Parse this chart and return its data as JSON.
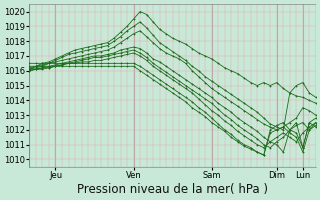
{
  "bg_color": "#c8e8d8",
  "line_color": "#1a6b1a",
  "ylim": [
    1009.5,
    1020.5
  ],
  "yticks": [
    1010,
    1011,
    1012,
    1013,
    1014,
    1015,
    1016,
    1017,
    1018,
    1019,
    1020
  ],
  "xlabel": "Pression niveau de la mer( hPa )",
  "xlabel_fontsize": 8.5,
  "tick_fontsize": 6,
  "day_labels": [
    "Jeu",
    "Ven",
    "Sam",
    "Dim",
    "Lun"
  ],
  "day_x": [
    24,
    96,
    168,
    228,
    252
  ],
  "xlim": [
    0,
    264
  ],
  "vline_color": "#e8a8a8",
  "hline_color": "#e8a8a8",
  "major_vline_color": "#c0a8a8",
  "lines": [
    [
      0,
      1016.1,
      6,
      1016.3,
      12,
      1016.5,
      18,
      1016.6,
      24,
      1016.8,
      30,
      1017.0,
      36,
      1017.2,
      42,
      1017.4,
      48,
      1017.5,
      54,
      1017.6,
      60,
      1017.7,
      66,
      1017.8,
      72,
      1017.9,
      78,
      1018.2,
      84,
      1018.6,
      90,
      1019.0,
      96,
      1019.5,
      102,
      1020.0,
      108,
      1019.8,
      114,
      1019.3,
      120,
      1018.8,
      126,
      1018.5,
      132,
      1018.2,
      138,
      1018.0,
      144,
      1017.8,
      150,
      1017.5,
      156,
      1017.2,
      162,
      1017.0,
      168,
      1016.8,
      174,
      1016.5,
      180,
      1016.2,
      186,
      1016.0,
      192,
      1015.8,
      198,
      1015.5,
      204,
      1015.2,
      210,
      1015.0,
      216,
      1015.2,
      222,
      1015.0,
      228,
      1015.2,
      234,
      1014.8,
      240,
      1014.5,
      246,
      1014.3,
      252,
      1014.2,
      258,
      1014.0,
      264,
      1013.8
    ],
    [
      0,
      1016.1,
      6,
      1016.2,
      12,
      1016.3,
      18,
      1016.5,
      24,
      1016.7,
      30,
      1016.9,
      36,
      1017.1,
      42,
      1017.2,
      48,
      1017.3,
      54,
      1017.4,
      60,
      1017.5,
      66,
      1017.6,
      72,
      1017.7,
      78,
      1018.0,
      84,
      1018.3,
      90,
      1018.7,
      96,
      1019.0,
      102,
      1019.3,
      108,
      1018.9,
      114,
      1018.4,
      120,
      1017.9,
      126,
      1017.6,
      132,
      1017.3,
      138,
      1017.0,
      144,
      1016.7,
      150,
      1016.3,
      156,
      1016.0,
      162,
      1015.6,
      168,
      1015.3,
      174,
      1015.0,
      180,
      1014.7,
      186,
      1014.4,
      192,
      1014.1,
      198,
      1013.8,
      204,
      1013.5,
      210,
      1013.2,
      216,
      1012.8,
      222,
      1012.4,
      228,
      1012.2,
      234,
      1012.0,
      240,
      1014.5,
      246,
      1015.0,
      252,
      1015.2,
      258,
      1014.5,
      264,
      1014.2
    ],
    [
      0,
      1016.2,
      6,
      1016.3,
      12,
      1016.4,
      18,
      1016.5,
      24,
      1016.6,
      30,
      1016.7,
      36,
      1016.8,
      42,
      1016.9,
      48,
      1017.0,
      54,
      1017.1,
      60,
      1017.2,
      66,
      1017.3,
      72,
      1017.4,
      78,
      1017.6,
      84,
      1017.9,
      90,
      1018.2,
      96,
      1018.5,
      102,
      1018.7,
      108,
      1018.3,
      114,
      1017.9,
      120,
      1017.5,
      126,
      1017.2,
      132,
      1017.0,
      138,
      1016.8,
      144,
      1016.5,
      150,
      1016.0,
      156,
      1015.6,
      162,
      1015.2,
      168,
      1014.8,
      174,
      1014.5,
      180,
      1014.2,
      186,
      1013.9,
      192,
      1013.6,
      198,
      1013.3,
      204,
      1013.0,
      210,
      1012.7,
      216,
      1012.4,
      222,
      1012.2,
      228,
      1012.0,
      234,
      1012.2,
      240,
      1012.5,
      246,
      1012.8,
      252,
      1013.5,
      258,
      1013.3,
      264,
      1013.0
    ],
    [
      0,
      1016.0,
      6,
      1016.1,
      12,
      1016.2,
      18,
      1016.3,
      24,
      1016.4,
      30,
      1016.5,
      36,
      1016.6,
      42,
      1016.7,
      48,
      1016.8,
      54,
      1016.9,
      60,
      1017.0,
      66,
      1017.0,
      72,
      1017.1,
      78,
      1017.2,
      84,
      1017.4,
      90,
      1017.5,
      96,
      1017.6,
      102,
      1017.5,
      108,
      1017.2,
      114,
      1016.8,
      120,
      1016.6,
      126,
      1016.3,
      132,
      1016.0,
      138,
      1015.7,
      144,
      1015.4,
      150,
      1015.1,
      156,
      1014.8,
      162,
      1014.5,
      168,
      1014.2,
      174,
      1013.8,
      180,
      1013.5,
      186,
      1013.2,
      192,
      1012.8,
      198,
      1012.5,
      204,
      1012.2,
      210,
      1011.9,
      216,
      1011.5,
      222,
      1011.2,
      228,
      1011.0,
      234,
      1010.5,
      240,
      1012.0,
      246,
      1012.5,
      252,
      1010.8,
      258,
      1012.5,
      264,
      1012.2
    ],
    [
      0,
      1016.0,
      6,
      1016.1,
      12,
      1016.1,
      18,
      1016.2,
      24,
      1016.3,
      30,
      1016.4,
      36,
      1016.5,
      42,
      1016.6,
      48,
      1016.7,
      54,
      1016.8,
      60,
      1016.9,
      66,
      1016.9,
      72,
      1017.0,
      78,
      1017.1,
      84,
      1017.2,
      90,
      1017.3,
      96,
      1017.4,
      102,
      1017.2,
      108,
      1016.9,
      114,
      1016.5,
      120,
      1016.2,
      126,
      1015.9,
      132,
      1015.6,
      138,
      1015.3,
      144,
      1015.0,
      150,
      1014.7,
      156,
      1014.4,
      162,
      1014.1,
      168,
      1013.8,
      174,
      1013.4,
      180,
      1013.0,
      186,
      1012.7,
      192,
      1012.3,
      198,
      1012.0,
      204,
      1011.7,
      210,
      1011.4,
      216,
      1011.0,
      222,
      1010.8,
      228,
      1011.2,
      234,
      1011.5,
      240,
      1012.0,
      246,
      1012.3,
      252,
      1012.5,
      258,
      1012.0,
      264,
      1012.5
    ],
    [
      0,
      1016.1,
      6,
      1016.1,
      12,
      1016.2,
      18,
      1016.2,
      24,
      1016.3,
      30,
      1016.4,
      36,
      1016.5,
      42,
      1016.5,
      48,
      1016.6,
      54,
      1016.6,
      60,
      1016.7,
      66,
      1016.7,
      72,
      1016.8,
      78,
      1016.9,
      84,
      1017.0,
      90,
      1017.1,
      96,
      1017.2,
      102,
      1017.0,
      108,
      1016.7,
      114,
      1016.3,
      120,
      1016.0,
      126,
      1015.7,
      132,
      1015.4,
      138,
      1015.1,
      144,
      1014.8,
      150,
      1014.5,
      156,
      1014.1,
      162,
      1013.7,
      168,
      1013.3,
      174,
      1013.0,
      180,
      1012.6,
      186,
      1012.3,
      192,
      1011.9,
      198,
      1011.6,
      204,
      1011.3,
      210,
      1011.0,
      216,
      1010.8,
      222,
      1011.2,
      228,
      1011.5,
      234,
      1011.8,
      240,
      1011.5,
      246,
      1011.2,
      252,
      1011.8,
      258,
      1012.2,
      264,
      1012.5
    ],
    [
      0,
      1016.5,
      6,
      1016.5,
      12,
      1016.5,
      18,
      1016.5,
      24,
      1016.5,
      30,
      1016.5,
      36,
      1016.5,
      42,
      1016.5,
      48,
      1016.5,
      54,
      1016.5,
      60,
      1016.5,
      66,
      1016.5,
      72,
      1016.5,
      78,
      1016.5,
      84,
      1016.5,
      90,
      1016.5,
      96,
      1016.5,
      102,
      1016.3,
      108,
      1016.0,
      114,
      1015.7,
      120,
      1015.4,
      126,
      1015.1,
      132,
      1014.8,
      138,
      1014.5,
      144,
      1014.2,
      150,
      1013.9,
      156,
      1013.5,
      162,
      1013.2,
      168,
      1012.8,
      174,
      1012.4,
      180,
      1012.0,
      186,
      1011.7,
      192,
      1011.3,
      198,
      1011.0,
      204,
      1010.8,
      210,
      1010.5,
      216,
      1010.3,
      222,
      1012.0,
      228,
      1012.3,
      234,
      1012.5,
      240,
      1012.0,
      246,
      1011.8,
      252,
      1010.8,
      258,
      1012.5,
      264,
      1012.8
    ],
    [
      0,
      1016.3,
      6,
      1016.3,
      12,
      1016.3,
      18,
      1016.3,
      24,
      1016.3,
      30,
      1016.3,
      36,
      1016.3,
      42,
      1016.3,
      48,
      1016.3,
      54,
      1016.3,
      60,
      1016.3,
      66,
      1016.3,
      72,
      1016.3,
      78,
      1016.3,
      84,
      1016.3,
      90,
      1016.3,
      96,
      1016.3,
      102,
      1016.0,
      108,
      1015.7,
      114,
      1015.4,
      120,
      1015.1,
      126,
      1014.8,
      132,
      1014.5,
      138,
      1014.2,
      144,
      1013.9,
      150,
      1013.5,
      156,
      1013.2,
      162,
      1012.9,
      168,
      1012.5,
      174,
      1012.2,
      180,
      1011.9,
      186,
      1011.5,
      192,
      1011.2,
      198,
      1010.9,
      204,
      1010.7,
      210,
      1010.5,
      216,
      1010.3,
      222,
      1011.8,
      228,
      1012.0,
      234,
      1012.2,
      240,
      1011.8,
      246,
      1011.5,
      252,
      1010.5,
      258,
      1012.0,
      264,
      1012.3
    ]
  ]
}
